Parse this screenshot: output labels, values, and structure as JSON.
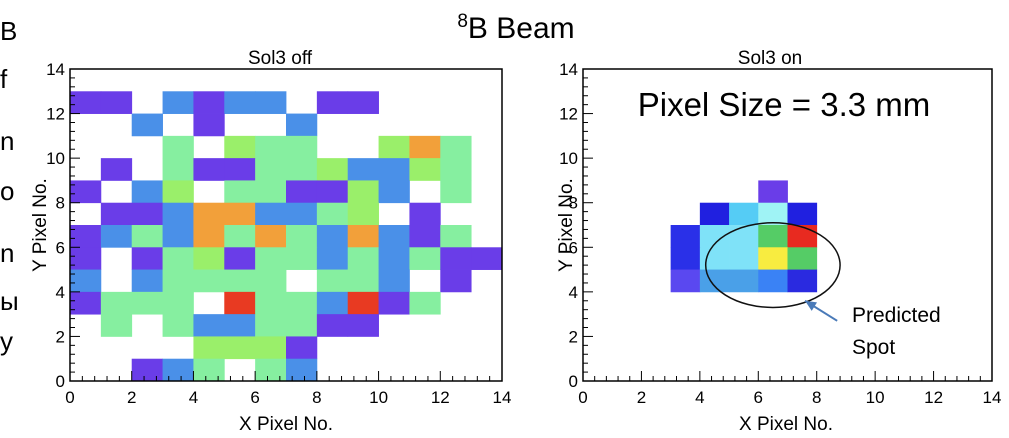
{
  "page_title_sup": "8",
  "page_title": "B Beam",
  "left_edge_fragments": [
    "B",
    "f",
    "n",
    "o",
    "n",
    "ы",
    "y"
  ],
  "chart_data": [
    {
      "type": "heatmap",
      "title": "Sol3 off",
      "xlabel": "X Pixel No.",
      "ylabel": "Y Pixel No.",
      "xlim": [
        0,
        14
      ],
      "ylim": [
        0,
        14
      ],
      "xticks": [
        "0",
        "2",
        "4",
        "6",
        "8",
        "10",
        "12",
        "14"
      ],
      "yticks": [
        "0",
        "2",
        "4",
        "6",
        "8",
        "10",
        "12",
        "14"
      ],
      "cells": [
        [
          0,
          12,
          "#6a3de8"
        ],
        [
          1,
          12,
          "#6a3de8"
        ],
        [
          3,
          12,
          "#4a90e8"
        ],
        [
          4,
          12,
          "#6a3de8"
        ],
        [
          5,
          12,
          "#4a90e8"
        ],
        [
          6,
          12,
          "#4a90e8"
        ],
        [
          8,
          12,
          "#6a3de8"
        ],
        [
          9,
          12,
          "#6a3de8"
        ],
        [
          2,
          11,
          "#4a90e8"
        ],
        [
          4,
          11,
          "#6a3de8"
        ],
        [
          7,
          11,
          "#4a90e8"
        ],
        [
          3,
          10,
          "#86efa0"
        ],
        [
          5,
          10,
          "#9aef6a"
        ],
        [
          6,
          10,
          "#86efa0"
        ],
        [
          7,
          10,
          "#86efa0"
        ],
        [
          10,
          10,
          "#9aef6a"
        ],
        [
          11,
          10,
          "#f2a03a"
        ],
        [
          12,
          10,
          "#86efa0"
        ],
        [
          1,
          9,
          "#6a3de8"
        ],
        [
          3,
          9,
          "#86efa0"
        ],
        [
          4,
          9,
          "#6a3de8"
        ],
        [
          5,
          9,
          "#6a3de8"
        ],
        [
          6,
          9,
          "#86efa0"
        ],
        [
          7,
          9,
          "#86efa0"
        ],
        [
          8,
          9,
          "#9aef6a"
        ],
        [
          9,
          9,
          "#4a90e8"
        ],
        [
          10,
          9,
          "#4a90e8"
        ],
        [
          11,
          9,
          "#9aef6a"
        ],
        [
          12,
          9,
          "#86efa0"
        ],
        [
          0,
          8,
          "#6a3de8"
        ],
        [
          2,
          8,
          "#4a90e8"
        ],
        [
          3,
          8,
          "#9aef6a"
        ],
        [
          5,
          8,
          "#86efa0"
        ],
        [
          6,
          8,
          "#86efa0"
        ],
        [
          7,
          8,
          "#6a3de8"
        ],
        [
          8,
          8,
          "#6a3de8"
        ],
        [
          9,
          8,
          "#9aef6a"
        ],
        [
          10,
          8,
          "#4a90e8"
        ],
        [
          12,
          8,
          "#86efa0"
        ],
        [
          1,
          7,
          "#6a3de8"
        ],
        [
          2,
          7,
          "#6a3de8"
        ],
        [
          3,
          7,
          "#4a90e8"
        ],
        [
          4,
          7,
          "#f2a03a"
        ],
        [
          5,
          7,
          "#f2a03a"
        ],
        [
          6,
          7,
          "#4a90e8"
        ],
        [
          7,
          7,
          "#4a90e8"
        ],
        [
          8,
          7,
          "#86efa0"
        ],
        [
          9,
          7,
          "#9aef6a"
        ],
        [
          11,
          7,
          "#6a3de8"
        ],
        [
          0,
          6,
          "#6a3de8"
        ],
        [
          1,
          6,
          "#4a90e8"
        ],
        [
          2,
          6,
          "#86efa0"
        ],
        [
          3,
          6,
          "#4a90e8"
        ],
        [
          4,
          6,
          "#f2a03a"
        ],
        [
          5,
          6,
          "#86efa0"
        ],
        [
          6,
          6,
          "#f2a03a"
        ],
        [
          7,
          6,
          "#86efa0"
        ],
        [
          8,
          6,
          "#4a90e8"
        ],
        [
          9,
          6,
          "#f2a03a"
        ],
        [
          10,
          6,
          "#4a90e8"
        ],
        [
          11,
          6,
          "#6a3de8"
        ],
        [
          12,
          6,
          "#86efa0"
        ],
        [
          0,
          5,
          "#6a3de8"
        ],
        [
          2,
          5,
          "#6a3de8"
        ],
        [
          3,
          5,
          "#86efa0"
        ],
        [
          4,
          5,
          "#9aef6a"
        ],
        [
          5,
          5,
          "#6a3de8"
        ],
        [
          6,
          5,
          "#86efa0"
        ],
        [
          7,
          5,
          "#86efa0"
        ],
        [
          8,
          5,
          "#4a90e8"
        ],
        [
          9,
          5,
          "#86efa0"
        ],
        [
          10,
          5,
          "#4a90e8"
        ],
        [
          11,
          5,
          "#86efa0"
        ],
        [
          12,
          5,
          "#6a3de8"
        ],
        [
          13,
          5,
          "#6a3de8"
        ],
        [
          0,
          4,
          "#4a90e8"
        ],
        [
          2,
          4,
          "#4a90e8"
        ],
        [
          3,
          4,
          "#86efa0"
        ],
        [
          4,
          4,
          "#86efa0"
        ],
        [
          5,
          4,
          "#86efa0"
        ],
        [
          6,
          4,
          "#86efa0"
        ],
        [
          8,
          4,
          "#86efa0"
        ],
        [
          9,
          4,
          "#86efa0"
        ],
        [
          10,
          4,
          "#4a90e8"
        ],
        [
          12,
          4,
          "#6a3de8"
        ],
        [
          0,
          3,
          "#6a3de8"
        ],
        [
          1,
          3,
          "#86efa0"
        ],
        [
          2,
          3,
          "#86efa0"
        ],
        [
          3,
          3,
          "#86efa0"
        ],
        [
          5,
          3,
          "#e83a22"
        ],
        [
          6,
          3,
          "#86efa0"
        ],
        [
          7,
          3,
          "#86efa0"
        ],
        [
          8,
          3,
          "#4a90e8"
        ],
        [
          9,
          3,
          "#e83a22"
        ],
        [
          10,
          3,
          "#6a3de8"
        ],
        [
          11,
          3,
          "#86efa0"
        ],
        [
          1,
          2,
          "#86efa0"
        ],
        [
          3,
          2,
          "#86efa0"
        ],
        [
          4,
          2,
          "#4a90e8"
        ],
        [
          5,
          2,
          "#4a90e8"
        ],
        [
          6,
          2,
          "#86efa0"
        ],
        [
          7,
          2,
          "#86efa0"
        ],
        [
          8,
          2,
          "#6a3de8"
        ],
        [
          9,
          2,
          "#6a3de8"
        ],
        [
          4,
          1,
          "#9aef6a"
        ],
        [
          5,
          1,
          "#9aef6a"
        ],
        [
          6,
          1,
          "#9aef6a"
        ],
        [
          7,
          1,
          "#6a3de8"
        ],
        [
          2,
          0,
          "#6a3de8"
        ],
        [
          3,
          0,
          "#4a90e8"
        ],
        [
          4,
          0,
          "#86efa0"
        ],
        [
          6,
          0,
          "#86efa0"
        ],
        [
          7,
          0,
          "#4a90e8"
        ],
        [
          5,
          -1,
          "#4a90e8"
        ],
        [
          6,
          -1,
          "#86efa0"
        ]
      ]
    },
    {
      "type": "heatmap",
      "title": "Sol3 on",
      "xlabel": "X Pixel No.",
      "ylabel": "Y Pixel No.",
      "xlim": [
        0,
        14
      ],
      "ylim": [
        0,
        14
      ],
      "xticks": [
        "0",
        "2",
        "4",
        "6",
        "8",
        "10",
        "12",
        "14"
      ],
      "yticks": [
        "0",
        "2",
        "4",
        "6",
        "8",
        "10",
        "12",
        "14"
      ],
      "annotation": "Pixel Size = 3.3 mm",
      "callout": [
        "Predicted",
        "Spot"
      ],
      "ellipse": {
        "cx": 6.5,
        "cy": 5.2,
        "rx": 2.3,
        "ry": 1.9
      },
      "arrow": {
        "from": [
          8.7,
          2.7
        ],
        "to": [
          7.6,
          3.6
        ]
      },
      "cells": [
        [
          6,
          8,
          "#6a3de8"
        ],
        [
          4,
          7,
          "#2020e0"
        ],
        [
          5,
          7,
          "#55ccf5"
        ],
        [
          6,
          7,
          "#9ff3f5"
        ],
        [
          7,
          7,
          "#2020e0"
        ],
        [
          3,
          6,
          "#2a30e8"
        ],
        [
          4,
          6,
          "#7fe2f8"
        ],
        [
          5,
          6,
          "#7fe2f8"
        ],
        [
          6,
          6,
          "#55cc66"
        ],
        [
          7,
          6,
          "#e82a20"
        ],
        [
          3,
          5,
          "#2a30e8"
        ],
        [
          4,
          5,
          "#7fe2f8"
        ],
        [
          5,
          5,
          "#7fe2f8"
        ],
        [
          6,
          5,
          "#f8ec40"
        ],
        [
          7,
          5,
          "#55cc66"
        ],
        [
          3,
          4,
          "#5a48f0"
        ],
        [
          4,
          4,
          "#4aa0e8"
        ],
        [
          5,
          4,
          "#4aa0e8"
        ],
        [
          6,
          4,
          "#3a82f5"
        ],
        [
          7,
          4,
          "#2a2ae0"
        ]
      ]
    }
  ]
}
